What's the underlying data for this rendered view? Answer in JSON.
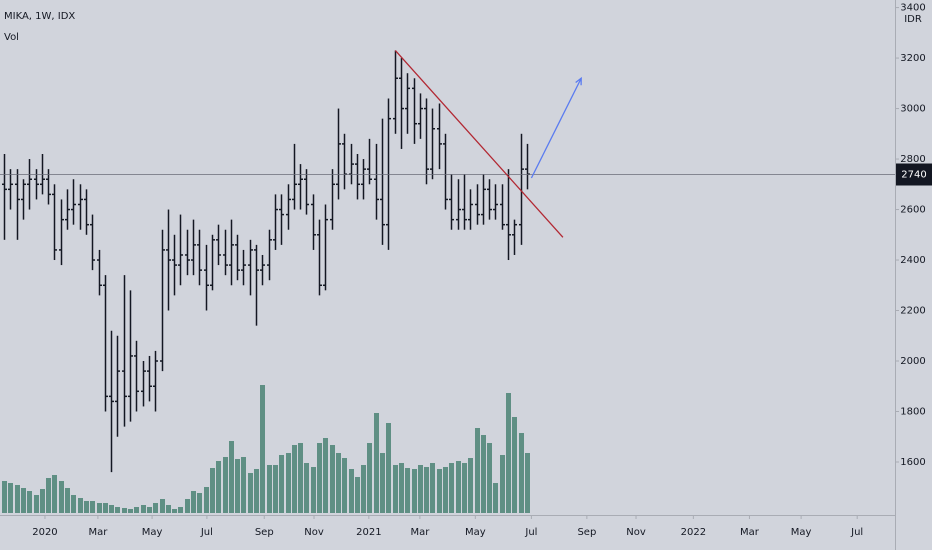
{
  "chart_data": {
    "type": "ohlc",
    "title": "MIKA, 1W, IDX",
    "volume_label": "Vol",
    "currency": "IDR",
    "bar_color": "#131722",
    "volume_color": "#5f8f84",
    "ylim": [
      1390,
      3430
    ],
    "yticks": [
      1600,
      1800,
      2000,
      2200,
      2400,
      2600,
      2800,
      3000,
      3200,
      3400
    ],
    "xlim": [
      -0.635,
      141.4
    ],
    "xticks": [
      {
        "value": 6.5,
        "label": "2020"
      },
      {
        "value": 14.9,
        "label": "Mar"
      },
      {
        "value": 23.5,
        "label": "May"
      },
      {
        "value": 32.2,
        "label": "Jul"
      },
      {
        "value": 41.3,
        "label": "Sep"
      },
      {
        "value": 49.2,
        "label": "Nov"
      },
      {
        "value": 57.9,
        "label": "2021"
      },
      {
        "value": 66.0,
        "label": "Mar"
      },
      {
        "value": 74.8,
        "label": "May"
      },
      {
        "value": 83.7,
        "label": "Jul"
      },
      {
        "value": 92.5,
        "label": "Sep"
      },
      {
        "value": 100.3,
        "label": "Nov"
      },
      {
        "value": 109.4,
        "label": "2022"
      },
      {
        "value": 118.3,
        "label": "Mar"
      },
      {
        "value": 126.5,
        "label": "May"
      },
      {
        "value": 135.4,
        "label": "Jul"
      }
    ],
    "x": [
      0,
      1,
      2,
      3,
      4,
      5,
      6,
      7,
      8,
      9,
      10,
      11,
      12,
      13,
      14,
      15,
      16,
      17,
      18,
      19,
      20,
      21,
      22,
      23,
      24,
      25,
      26,
      27,
      28,
      29,
      30,
      31,
      32,
      33,
      34,
      35,
      36,
      37,
      38,
      39,
      40,
      41,
      42,
      43,
      44,
      45,
      46,
      47,
      48,
      49,
      50,
      51,
      52,
      53,
      54,
      55,
      56,
      57,
      58,
      59,
      60,
      61,
      62,
      63,
      64,
      65,
      66,
      67,
      68,
      69,
      70,
      71,
      72,
      73,
      74,
      75,
      76,
      77,
      78,
      79,
      80,
      81,
      82,
      83
    ],
    "open": [
      2700,
      2680,
      2700,
      2640,
      2700,
      2720,
      2700,
      2720,
      2660,
      2440,
      2560,
      2600,
      2620,
      2640,
      2540,
      2400,
      2300,
      1860,
      1840,
      1960,
      1860,
      2020,
      1880,
      1960,
      1900,
      2000,
      2440,
      2400,
      2380,
      2420,
      2400,
      2460,
      2360,
      2300,
      2480,
      2420,
      2380,
      2460,
      2360,
      2380,
      2440,
      2360,
      2380,
      2480,
      2600,
      2580,
      2640,
      2700,
      2720,
      2620,
      2500,
      2300,
      2560,
      2700,
      2860,
      2740,
      2780,
      2700,
      2760,
      2720,
      2640,
      2540,
      2960,
      3120,
      3000,
      3080,
      2940,
      3000,
      2760,
      2920,
      2860,
      2640,
      2560,
      2600,
      2560,
      2620,
      2580,
      2680,
      2600,
      2620,
      2540,
      2500,
      2540,
      2760
    ],
    "high": [
      2820,
      2760,
      2760,
      2720,
      2800,
      2760,
      2820,
      2760,
      2700,
      2640,
      2680,
      2720,
      2700,
      2680,
      2580,
      2440,
      2340,
      2120,
      2100,
      2340,
      2280,
      2080,
      2000,
      2020,
      2040,
      2520,
      2600,
      2500,
      2580,
      2520,
      2560,
      2520,
      2460,
      2500,
      2540,
      2520,
      2560,
      2500,
      2440,
      2480,
      2460,
      2420,
      2520,
      2660,
      2660,
      2700,
      2860,
      2780,
      2760,
      2660,
      2560,
      2620,
      2760,
      3000,
      2900,
      2860,
      2820,
      2800,
      2880,
      2860,
      2960,
      3040,
      3230,
      3200,
      3140,
      3120,
      3060,
      3040,
      3000,
      3020,
      2900,
      2740,
      2720,
      2740,
      2680,
      2700,
      2740,
      2720,
      2700,
      2700,
      2760,
      2560,
      2900,
      2860
    ],
    "low": [
      2480,
      2600,
      2480,
      2560,
      2600,
      2640,
      2660,
      2620,
      2400,
      2380,
      2520,
      2540,
      2520,
      2500,
      2360,
      2260,
      1800,
      1560,
      1700,
      1740,
      1760,
      1800,
      1820,
      1840,
      1800,
      1960,
      2200,
      2260,
      2300,
      2340,
      2340,
      2300,
      2200,
      2280,
      2380,
      2340,
      2300,
      2320,
      2300,
      2260,
      2140,
      2300,
      2320,
      2440,
      2460,
      2520,
      2600,
      2600,
      2580,
      2440,
      2260,
      2280,
      2520,
      2640,
      2680,
      2700,
      2640,
      2640,
      2700,
      2560,
      2460,
      2440,
      2900,
      2840,
      2900,
      2860,
      2880,
      2700,
      2720,
      2760,
      2600,
      2520,
      2520,
      2520,
      2520,
      2540,
      2540,
      2560,
      2560,
      2520,
      2400,
      2420,
      2460,
      2680
    ],
    "close": [
      2680,
      2700,
      2640,
      2700,
      2720,
      2700,
      2720,
      2660,
      2440,
      2560,
      2600,
      2620,
      2640,
      2540,
      2400,
      2300,
      1860,
      1840,
      1960,
      1860,
      2020,
      1880,
      1960,
      1900,
      2000,
      2440,
      2400,
      2380,
      2420,
      2400,
      2460,
      2360,
      2300,
      2480,
      2420,
      2380,
      2460,
      2360,
      2380,
      2440,
      2360,
      2380,
      2480,
      2600,
      2580,
      2640,
      2700,
      2720,
      2620,
      2500,
      2300,
      2560,
      2700,
      2860,
      2740,
      2780,
      2700,
      2760,
      2720,
      2640,
      2540,
      2960,
      3120,
      3000,
      3080,
      2940,
      3000,
      2760,
      2920,
      2860,
      2640,
      2560,
      2600,
      2560,
      2620,
      2580,
      2680,
      2600,
      2620,
      2540,
      2500,
      2540,
      2760,
      2740
    ],
    "volume": [
      32,
      30,
      28,
      25,
      22,
      18,
      24,
      35,
      38,
      32,
      25,
      18,
      15,
      12,
      12,
      10,
      10,
      8,
      6,
      5,
      4,
      6,
      8,
      6,
      10,
      14,
      8,
      4,
      6,
      14,
      22,
      20,
      26,
      45,
      52,
      56,
      72,
      54,
      56,
      40,
      44,
      128,
      48,
      48,
      58,
      60,
      68,
      70,
      50,
      46,
      70,
      75,
      68,
      60,
      55,
      44,
      36,
      48,
      70,
      100,
      60,
      90,
      48,
      50,
      45,
      44,
      48,
      46,
      50,
      44,
      46,
      50,
      52,
      50,
      55,
      85,
      78,
      70,
      30,
      58,
      120,
      96,
      80,
      60
    ],
    "last_price": 2740,
    "annotations": [
      {
        "type": "trendline",
        "color": "#b22833",
        "x": [
          62.1,
          88.7
        ],
        "values": [
          3230,
          2490
        ]
      },
      {
        "type": "arrow",
        "color": "#5a7bf0",
        "x": [
          83.7,
          91.6
        ],
        "values": [
          2725,
          3120
        ]
      }
    ]
  }
}
